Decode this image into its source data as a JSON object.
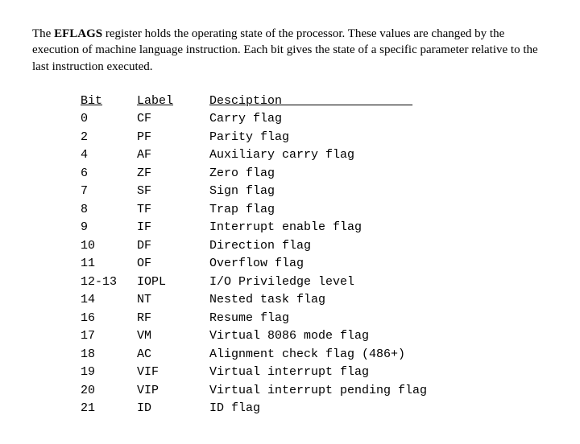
{
  "intro": {
    "prefix": "The ",
    "bold": "EFLAGS",
    "rest": " register holds the operating state of the processor. These values are changed by the execution of machine language instruction. Each bit gives the state of a specific parameter relative to the last instruction executed."
  },
  "headers": {
    "bit": "Bit",
    "label": "Label",
    "desc": "Desciption"
  },
  "rows": [
    {
      "bit": "0",
      "label": "CF",
      "desc": "Carry flag"
    },
    {
      "bit": "2",
      "label": "PF",
      "desc": "Parity flag"
    },
    {
      "bit": "4",
      "label": "AF",
      "desc": "Auxiliary carry flag"
    },
    {
      "bit": "6",
      "label": "ZF",
      "desc": "Zero flag"
    },
    {
      "bit": "7",
      "label": "SF",
      "desc": "Sign flag"
    },
    {
      "bit": "8",
      "label": "TF",
      "desc": "Trap flag"
    },
    {
      "bit": "9",
      "label": "IF",
      "desc": "Interrupt enable flag"
    },
    {
      "bit": "10",
      "label": "DF",
      "desc": "Direction flag"
    },
    {
      "bit": "11",
      "label": "OF",
      "desc": "Overflow flag"
    },
    {
      "bit": "12-13",
      "label": "IOPL",
      "desc": "I/O Priviledge level"
    },
    {
      "bit": "14",
      "label": "NT",
      "desc": "Nested task flag"
    },
    {
      "bit": "16",
      "label": "RF",
      "desc": "Resume flag"
    },
    {
      "bit": "17",
      "label": "VM",
      "desc": "Virtual 8086 mode flag"
    },
    {
      "bit": "18",
      "label": "AC",
      "desc": "Alignment check flag (486+)"
    },
    {
      "bit": "19",
      "label": "VIF",
      "desc": "Virtual interrupt flag"
    },
    {
      "bit": "20",
      "label": "VIP",
      "desc": "Virtual interrupt pending flag"
    },
    {
      "bit": "21",
      "label": "ID",
      "desc": "ID flag"
    }
  ]
}
